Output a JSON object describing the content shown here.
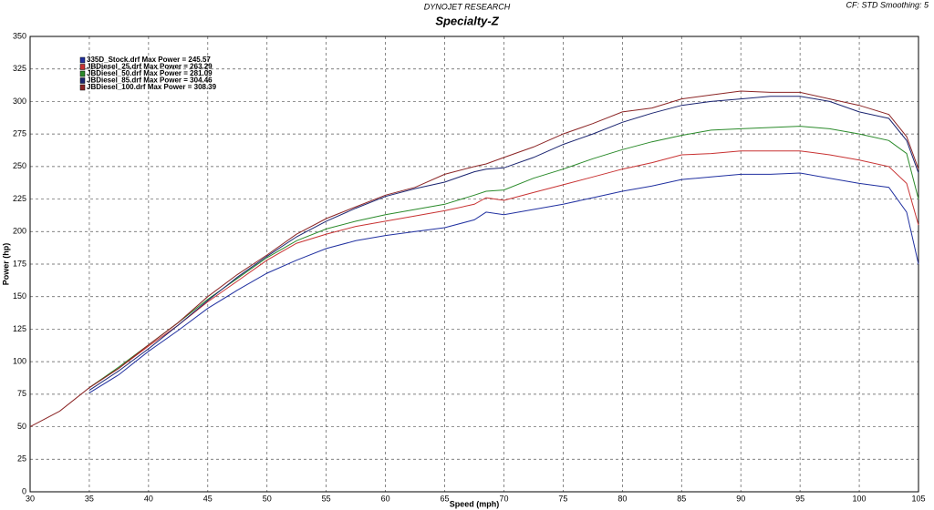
{
  "header": {
    "company": "DYNOJET RESEARCH",
    "settings": "CF: STD  Smoothing: 5"
  },
  "chart_data": {
    "type": "line",
    "title": "Specialty-Z",
    "x_label": "Speed (mph)",
    "y_label": "Power (hp)",
    "x": [
      30,
      32.5,
      35,
      37.5,
      40,
      42.5,
      45,
      47.5,
      50,
      52.5,
      55,
      57.5,
      60,
      62.5,
      65,
      67.5,
      68.5,
      70,
      72.5,
      75,
      77.5,
      80,
      82.5,
      85,
      87.5,
      90,
      92.5,
      95,
      97.5,
      100,
      102.5,
      104,
      105
    ],
    "series": [
      {
        "name": "335D_Stock.drf Max Power = 245.57",
        "color": "#2030a0",
        "values": [
          null,
          null,
          76,
          90,
          108,
          124,
          141,
          155,
          168,
          178,
          187,
          193,
          197,
          200,
          203,
          209,
          215,
          213,
          217,
          221,
          226,
          231,
          235,
          240,
          242,
          244,
          244,
          245,
          241,
          237,
          234,
          215,
          175
        ]
      },
      {
        "name": "JBDiesel_25.drf Max Power = 263.29",
        "color": "#c83232",
        "values": [
          null,
          null,
          80,
          95,
          112,
          128,
          146,
          162,
          178,
          191,
          198,
          204,
          208,
          212,
          216,
          221,
          226,
          224,
          230,
          236,
          242,
          248,
          253,
          259,
          260,
          262,
          262,
          262,
          259,
          255,
          250,
          237,
          205
        ]
      },
      {
        "name": "JBDiesel_50.drf Max Power = 281.09",
        "color": "#2a8a2a",
        "values": [
          null,
          null,
          80,
          96,
          113,
          130,
          148,
          164,
          180,
          193,
          202,
          208,
          213,
          217,
          221,
          228,
          231,
          232,
          241,
          248,
          256,
          263,
          269,
          274,
          278,
          279,
          280,
          281,
          279,
          275,
          270,
          260,
          225
        ]
      },
      {
        "name": "JBDiesel_85.drf Max Power = 304.46",
        "color": "#1a2470",
        "values": [
          null,
          null,
          78,
          93,
          110,
          128,
          147,
          165,
          181,
          196,
          208,
          218,
          227,
          233,
          238,
          246,
          248,
          249,
          257,
          267,
          275,
          284,
          291,
          297,
          300,
          302,
          304,
          304,
          300,
          292,
          287,
          270,
          245
        ]
      },
      {
        "name": "JBDiesel_100.drf Max Power = 308.39",
        "color": "#8b2525",
        "values": [
          50,
          62,
          80,
          95,
          113,
          130,
          150,
          167,
          182,
          198,
          210,
          219,
          228,
          234,
          244,
          250,
          252,
          257,
          265,
          275,
          283,
          292,
          295,
          302,
          305,
          308,
          307,
          307,
          302,
          297,
          290,
          273,
          248
        ]
      }
    ],
    "xlim": [
      30,
      105
    ],
    "xticks": [
      30,
      35,
      40,
      45,
      50,
      55,
      60,
      65,
      70,
      75,
      80,
      85,
      90,
      95,
      100,
      105
    ],
    "ylim": [
      0,
      350
    ],
    "yticks": [
      0,
      25,
      50,
      75,
      100,
      125,
      150,
      175,
      200,
      225,
      250,
      275,
      300,
      325,
      350
    ],
    "grid": true,
    "legend": "top-left"
  }
}
